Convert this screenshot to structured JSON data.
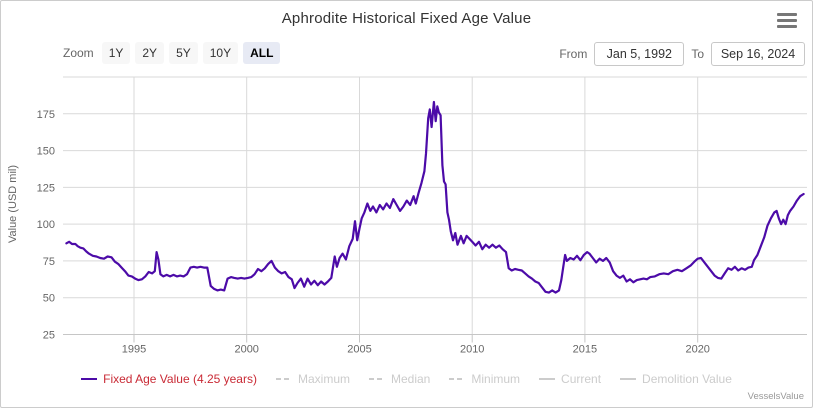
{
  "title": "Aphrodite Historical Fixed Age Value",
  "toolbar": {
    "zoom_label": "Zoom",
    "zoom_buttons": [
      "1Y",
      "2Y",
      "5Y",
      "10Y",
      "ALL"
    ],
    "zoom_active": "ALL",
    "from_label": "From",
    "from_value": "Jan 5, 1992",
    "to_label": "To",
    "to_value": "Sep 16, 2024"
  },
  "menu_icon": "hamburger-context-menu",
  "watermark": "VesselsValue",
  "colors": {
    "series_line": "#4c0ba8",
    "legend_active_text": "#c92a35",
    "legend_disabled": "#cccccc",
    "grid_line": "#d9d9d9",
    "axis_line": "#c6c6c6",
    "axis_text": "#666666"
  },
  "legend": {
    "items": [
      {
        "label": "Fixed Age Value (4.25 years)",
        "marker": "solid",
        "marker_color": "#4c0ba8",
        "text_color": "#c92a35",
        "enabled": true
      },
      {
        "label": "Maximum",
        "marker": "dashed",
        "marker_color": "#cccccc",
        "text_color": "#cccccc",
        "enabled": false
      },
      {
        "label": "Median",
        "marker": "dashed",
        "marker_color": "#cccccc",
        "text_color": "#cccccc",
        "enabled": false
      },
      {
        "label": "Minimum",
        "marker": "dashed",
        "marker_color": "#cccccc",
        "text_color": "#cccccc",
        "enabled": false
      },
      {
        "label": "Current",
        "marker": "solid",
        "marker_color": "#cccccc",
        "text_color": "#cccccc",
        "enabled": false
      },
      {
        "label": "Demolition Value",
        "marker": "solid",
        "marker_color": "#cccccc",
        "text_color": "#cccccc",
        "enabled": false
      }
    ]
  },
  "chart_data": {
    "type": "line",
    "title": "Aphrodite Historical Fixed Age Value",
    "xlabel": "",
    "ylabel": "Value (USD mil)",
    "y_ticks": [
      25,
      50,
      75,
      100,
      125,
      150,
      175
    ],
    "x_ticks": [
      1995,
      2000,
      2005,
      2010,
      2015,
      2020
    ],
    "x_range": [
      1991.85,
      2024.85
    ],
    "y_range": [
      25,
      200
    ],
    "grid": true,
    "legend_position": "bottom",
    "series": [
      {
        "name": "Fixed Age Value (4.25 years)",
        "color": "#4c0ba8",
        "points": [
          [
            1992.0,
            87
          ],
          [
            1992.12,
            88
          ],
          [
            1992.25,
            86.5
          ],
          [
            1992.4,
            86.5
          ],
          [
            1992.5,
            85
          ],
          [
            1992.62,
            84
          ],
          [
            1992.75,
            83.5
          ],
          [
            1992.88,
            81.5
          ],
          [
            1993.0,
            80
          ],
          [
            1993.17,
            78.5
          ],
          [
            1993.33,
            78
          ],
          [
            1993.5,
            77
          ],
          [
            1993.67,
            76.5
          ],
          [
            1993.83,
            78
          ],
          [
            1994.0,
            77.5
          ],
          [
            1994.15,
            74.5
          ],
          [
            1994.3,
            73
          ],
          [
            1994.45,
            70.5
          ],
          [
            1994.6,
            68
          ],
          [
            1994.75,
            65
          ],
          [
            1994.9,
            64.5
          ],
          [
            1995.05,
            63
          ],
          [
            1995.2,
            62
          ],
          [
            1995.35,
            62.5
          ],
          [
            1995.5,
            64.5
          ],
          [
            1995.65,
            67.5
          ],
          [
            1995.8,
            66.5
          ],
          [
            1995.92,
            68
          ],
          [
            1996.0,
            81
          ],
          [
            1996.08,
            76
          ],
          [
            1996.17,
            66
          ],
          [
            1996.3,
            64.5
          ],
          [
            1996.45,
            65.5
          ],
          [
            1996.6,
            64.5
          ],
          [
            1996.75,
            65.5
          ],
          [
            1996.9,
            64.5
          ],
          [
            1997.05,
            65
          ],
          [
            1997.2,
            64.5
          ],
          [
            1997.35,
            66
          ],
          [
            1997.5,
            70.5
          ],
          [
            1997.65,
            71
          ],
          [
            1997.8,
            70.5
          ],
          [
            1997.95,
            71
          ],
          [
            1998.1,
            70.5
          ],
          [
            1998.25,
            70.5
          ],
          [
            1998.4,
            58
          ],
          [
            1998.55,
            56
          ],
          [
            1998.7,
            55
          ],
          [
            1998.85,
            55.5
          ],
          [
            1999.0,
            55
          ],
          [
            1999.15,
            63
          ],
          [
            1999.3,
            64
          ],
          [
            1999.45,
            63.5
          ],
          [
            1999.6,
            63
          ],
          [
            1999.75,
            63.5
          ],
          [
            1999.9,
            63
          ],
          [
            2000.05,
            63.5
          ],
          [
            2000.2,
            64
          ],
          [
            2000.35,
            66
          ],
          [
            2000.5,
            69.5
          ],
          [
            2000.65,
            68
          ],
          [
            2000.8,
            70
          ],
          [
            2000.95,
            73
          ],
          [
            2001.1,
            75
          ],
          [
            2001.25,
            70.5
          ],
          [
            2001.4,
            68
          ],
          [
            2001.55,
            66.5
          ],
          [
            2001.7,
            67.5
          ],
          [
            2001.85,
            64
          ],
          [
            2002.0,
            62.5
          ],
          [
            2002.12,
            56.5
          ],
          [
            2002.25,
            60
          ],
          [
            2002.4,
            63
          ],
          [
            2002.55,
            57.5
          ],
          [
            2002.7,
            63
          ],
          [
            2002.85,
            59
          ],
          [
            2003.0,
            61.5
          ],
          [
            2003.15,
            58.5
          ],
          [
            2003.3,
            61
          ],
          [
            2003.45,
            59
          ],
          [
            2003.6,
            61
          ],
          [
            2003.75,
            63.5
          ],
          [
            2003.9,
            78
          ],
          [
            2004.0,
            71
          ],
          [
            2004.12,
            77
          ],
          [
            2004.25,
            80
          ],
          [
            2004.4,
            76
          ],
          [
            2004.55,
            85
          ],
          [
            2004.7,
            90
          ],
          [
            2004.8,
            102
          ],
          [
            2004.9,
            89
          ],
          [
            2005.0,
            97
          ],
          [
            2005.1,
            104
          ],
          [
            2005.22,
            108
          ],
          [
            2005.35,
            114
          ],
          [
            2005.48,
            109
          ],
          [
            2005.6,
            112
          ],
          [
            2005.75,
            108
          ],
          [
            2005.9,
            113
          ],
          [
            2006.05,
            110
          ],
          [
            2006.2,
            114
          ],
          [
            2006.35,
            111
          ],
          [
            2006.5,
            117
          ],
          [
            2006.65,
            113
          ],
          [
            2006.8,
            109
          ],
          [
            2006.95,
            112
          ],
          [
            2007.1,
            116
          ],
          [
            2007.25,
            113
          ],
          [
            2007.4,
            119
          ],
          [
            2007.5,
            114
          ],
          [
            2007.62,
            121
          ],
          [
            2007.75,
            128
          ],
          [
            2007.88,
            136
          ],
          [
            2007.95,
            148
          ],
          [
            2008.05,
            172
          ],
          [
            2008.12,
            178
          ],
          [
            2008.2,
            166
          ],
          [
            2008.3,
            183
          ],
          [
            2008.38,
            170
          ],
          [
            2008.45,
            180
          ],
          [
            2008.52,
            176
          ],
          [
            2008.6,
            174
          ],
          [
            2008.68,
            140
          ],
          [
            2008.75,
            129
          ],
          [
            2008.82,
            127
          ],
          [
            2008.9,
            108
          ],
          [
            2008.97,
            103
          ],
          [
            2009.05,
            95
          ],
          [
            2009.15,
            89
          ],
          [
            2009.25,
            94
          ],
          [
            2009.35,
            86
          ],
          [
            2009.5,
            92
          ],
          [
            2009.62,
            87
          ],
          [
            2009.75,
            92
          ],
          [
            2009.88,
            90
          ],
          [
            2010.0,
            88
          ],
          [
            2010.15,
            85.5
          ],
          [
            2010.3,
            88
          ],
          [
            2010.45,
            83
          ],
          [
            2010.6,
            86
          ],
          [
            2010.75,
            84
          ],
          [
            2010.9,
            86
          ],
          [
            2011.05,
            84
          ],
          [
            2011.2,
            85.5
          ],
          [
            2011.35,
            83
          ],
          [
            2011.5,
            81
          ],
          [
            2011.62,
            70
          ],
          [
            2011.75,
            68.5
          ],
          [
            2011.9,
            69.5
          ],
          [
            2012.05,
            69
          ],
          [
            2012.2,
            68.5
          ],
          [
            2012.35,
            66.5
          ],
          [
            2012.5,
            64.5
          ],
          [
            2012.65,
            63
          ],
          [
            2012.8,
            61
          ],
          [
            2012.95,
            60
          ],
          [
            2013.1,
            57
          ],
          [
            2013.25,
            54
          ],
          [
            2013.4,
            53.5
          ],
          [
            2013.55,
            55
          ],
          [
            2013.7,
            53.5
          ],
          [
            2013.85,
            55
          ],
          [
            2013.95,
            62
          ],
          [
            2014.05,
            72
          ],
          [
            2014.12,
            79
          ],
          [
            2014.2,
            75
          ],
          [
            2014.35,
            77
          ],
          [
            2014.5,
            76
          ],
          [
            2014.65,
            78.5
          ],
          [
            2014.8,
            75.5
          ],
          [
            2014.95,
            79
          ],
          [
            2015.1,
            81
          ],
          [
            2015.2,
            80
          ],
          [
            2015.35,
            77
          ],
          [
            2015.5,
            74
          ],
          [
            2015.65,
            76.5
          ],
          [
            2015.8,
            75
          ],
          [
            2015.95,
            77
          ],
          [
            2016.1,
            74
          ],
          [
            2016.25,
            68
          ],
          [
            2016.4,
            65
          ],
          [
            2016.55,
            63.5
          ],
          [
            2016.7,
            65
          ],
          [
            2016.85,
            61
          ],
          [
            2017.0,
            62.5
          ],
          [
            2017.15,
            60.5
          ],
          [
            2017.3,
            62
          ],
          [
            2017.45,
            62.5
          ],
          [
            2017.6,
            63
          ],
          [
            2017.75,
            62.5
          ],
          [
            2017.9,
            64
          ],
          [
            2018.1,
            64.5
          ],
          [
            2018.3,
            66
          ],
          [
            2018.5,
            66.5
          ],
          [
            2018.7,
            66
          ],
          [
            2018.9,
            68
          ],
          [
            2019.1,
            69
          ],
          [
            2019.3,
            68
          ],
          [
            2019.5,
            70
          ],
          [
            2019.7,
            72
          ],
          [
            2019.85,
            74.5
          ],
          [
            2020.0,
            76.5
          ],
          [
            2020.15,
            77
          ],
          [
            2020.3,
            74
          ],
          [
            2020.45,
            71
          ],
          [
            2020.6,
            68
          ],
          [
            2020.75,
            65
          ],
          [
            2020.9,
            63.5
          ],
          [
            2021.05,
            63
          ],
          [
            2021.2,
            66.5
          ],
          [
            2021.35,
            70
          ],
          [
            2021.5,
            69
          ],
          [
            2021.65,
            71
          ],
          [
            2021.8,
            68.5
          ],
          [
            2021.95,
            70
          ],
          [
            2022.1,
            69
          ],
          [
            2022.25,
            70.5
          ],
          [
            2022.4,
            71
          ],
          [
            2022.5,
            75.5
          ],
          [
            2022.65,
            79
          ],
          [
            2022.8,
            85
          ],
          [
            2022.95,
            91
          ],
          [
            2023.1,
            99
          ],
          [
            2023.25,
            104
          ],
          [
            2023.4,
            108
          ],
          [
            2023.5,
            109
          ],
          [
            2023.6,
            104
          ],
          [
            2023.7,
            100
          ],
          [
            2023.8,
            103
          ],
          [
            2023.9,
            100
          ],
          [
            2024.0,
            106
          ],
          [
            2024.1,
            109
          ],
          [
            2024.25,
            112
          ],
          [
            2024.4,
            116
          ],
          [
            2024.55,
            119
          ],
          [
            2024.7,
            120.5
          ]
        ]
      }
    ]
  }
}
